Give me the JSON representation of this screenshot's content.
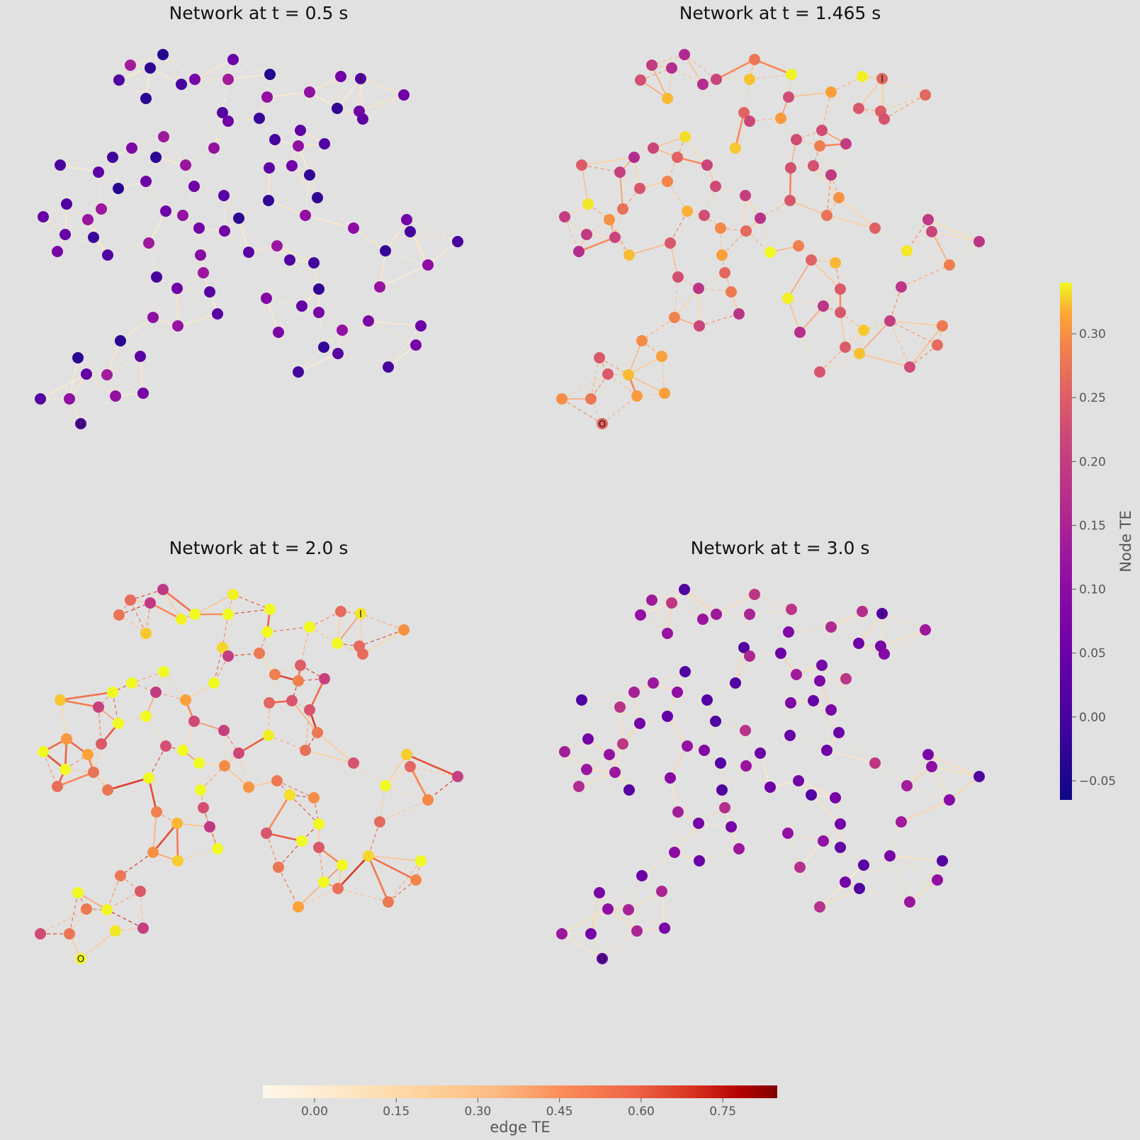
{
  "panels": [
    {
      "title": "Network at t = 0.5 s",
      "node_te": 0.05,
      "edge_te": 0.05,
      "edge_spread": 0.03
    },
    {
      "title": "Network at t = 1.465 s",
      "node_te": 0.25,
      "edge_te": 0.3,
      "edge_spread": 0.2
    },
    {
      "title": "Network at t = 2.0 s",
      "node_te": 0.28,
      "edge_te": 0.4,
      "edge_spread": 0.3
    },
    {
      "title": "Network at t = 3.0 s",
      "node_te": 0.1,
      "edge_te": 0.12,
      "edge_spread": 0.08
    }
  ],
  "special_nodes": {
    "input": "I",
    "output": "O"
  },
  "node_colorbar": {
    "label": "Node TE",
    "range": [
      -0.065,
      0.34
    ],
    "ticks": [
      "−0.05",
      "0.00",
      "0.05",
      "0.10",
      "0.15",
      "0.20",
      "0.25",
      "0.30"
    ],
    "tick_values": [
      -0.05,
      0.0,
      0.05,
      0.1,
      0.15,
      0.2,
      0.25,
      0.3
    ],
    "colormap": "plasma"
  },
  "edge_colorbar": {
    "label": "edge TE",
    "range": [
      -0.095,
      0.85
    ],
    "ticks": [
      "0.00",
      "0.15",
      "0.30",
      "0.45",
      "0.60",
      "0.75"
    ],
    "tick_values": [
      0.0,
      0.15,
      0.3,
      0.45,
      0.6,
      0.75
    ],
    "colormap": "OrRd"
  }
}
